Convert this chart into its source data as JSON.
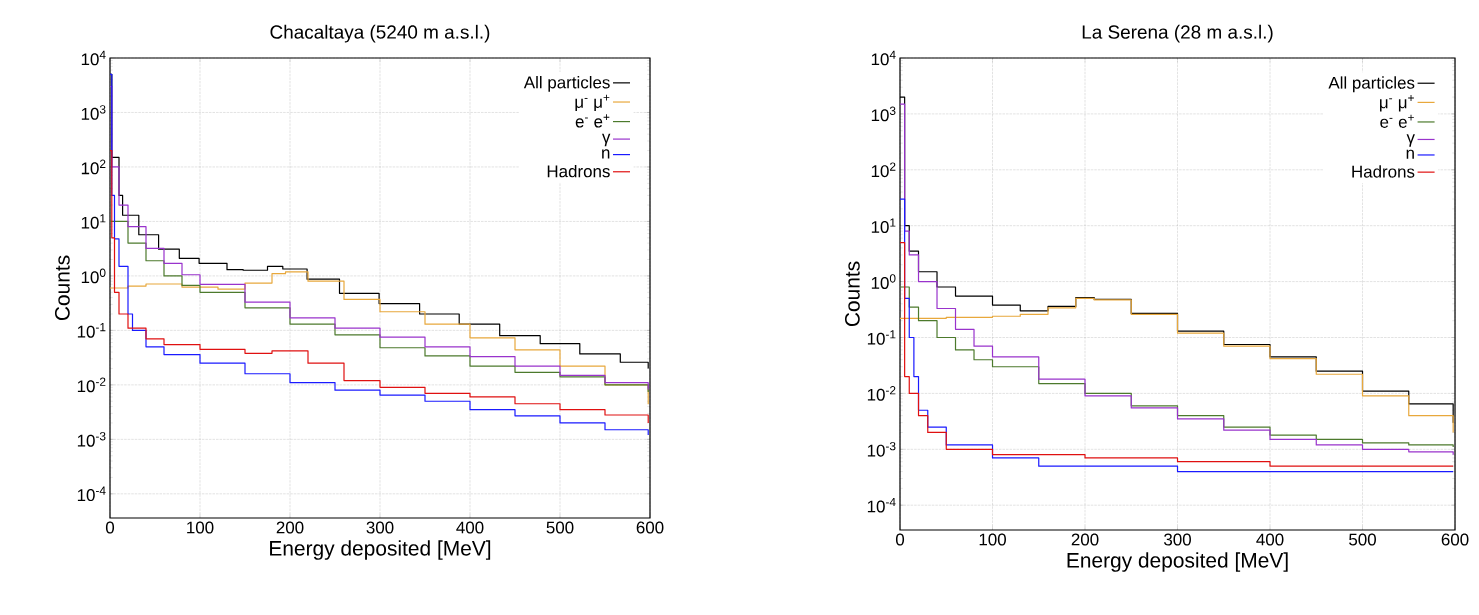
{
  "chart_data": [
    {
      "type": "step",
      "title": "Chacaltaya (5240 m a.s.l.)",
      "xlabel": "Energy deposited [MeV]",
      "ylabel": "Counts",
      "log": true,
      "grid": true,
      "legend": "top right",
      "xlim": [
        0,
        600
      ],
      "ylim": [
        3.6e-05,
        10000
      ],
      "xticks": [
        0,
        100,
        200,
        300,
        400,
        500,
        600
      ],
      "yticks": [
        {
          "value": 0.0001,
          "label": "10$^{-4}$"
        },
        {
          "value": 0.001,
          "label": "10$^{-3}$"
        },
        {
          "value": 0.01,
          "label": "10$^{-2}$"
        },
        {
          "value": 0.1,
          "label": "10$^{-1}$"
        },
        {
          "value": 1,
          "label": "10$^{0}$"
        },
        {
          "value": 10,
          "label": "10$^{1}$"
        },
        {
          "value": 100,
          "label": "10$^{2}$"
        },
        {
          "value": 1000,
          "label": "10$^{3}$"
        },
        {
          "value": 10000,
          "label": "10$^{4}$"
        }
      ],
      "series": [
        {
          "name": "All particles",
          "color": "#000000",
          "x": [
            0,
            2,
            10,
            14,
            32,
            54,
            77,
            99,
            130,
            148,
            175,
            192,
            219,
            255,
            299,
            344,
            388,
            433,
            478,
            522,
            567,
            598
          ],
          "values": [
            5000,
            150,
            30,
            13,
            5.7,
            3.1,
            2.1,
            1.7,
            1.3,
            1.27,
            1.5,
            1.34,
            0.87,
            0.48,
            0.31,
            0.2,
            0.13,
            0.08,
            0.057,
            0.037,
            0.026,
            0.02
          ]
        },
        {
          "name": "μ$^{-}$ μ$^{+}$",
          "color": "#e8a83c",
          "x": [
            0,
            20,
            40,
            80,
            120,
            150,
            180,
            195,
            220,
            260,
            300,
            350,
            400,
            450,
            500,
            550,
            598
          ],
          "values": [
            0.6,
            0.65,
            0.71,
            0.62,
            0.57,
            0.74,
            1.1,
            1.19,
            0.8,
            0.37,
            0.22,
            0.13,
            0.073,
            0.044,
            0.022,
            0.01,
            0.0044
          ]
        },
        {
          "name": "e$^{-}$ e$^{+}$",
          "color": "#4c7a2c",
          "x": [
            0,
            20,
            40,
            60,
            80,
            100,
            150,
            200,
            250,
            300,
            350,
            400,
            450,
            500,
            550,
            598
          ],
          "values": [
            10,
            4,
            1.9,
            1.0,
            0.67,
            0.5,
            0.26,
            0.13,
            0.083,
            0.048,
            0.034,
            0.022,
            0.017,
            0.014,
            0.01,
            0.0074
          ]
        },
        {
          "name": "γ",
          "color": "#9933cc",
          "x": [
            0,
            2,
            10,
            20,
            40,
            60,
            80,
            100,
            150,
            200,
            250,
            300,
            350,
            400,
            450,
            500,
            550,
            598
          ],
          "values": [
            3000,
            100,
            20,
            8,
            3.2,
            1.7,
            1.05,
            0.7,
            0.33,
            0.17,
            0.11,
            0.075,
            0.05,
            0.033,
            0.022,
            0.015,
            0.011,
            0.0082
          ]
        },
        {
          "name": "n",
          "color": "#1a1aff",
          "x": [
            0,
            2,
            5,
            10,
            20,
            25,
            40,
            60,
            100,
            150,
            200,
            250,
            300,
            350,
            400,
            450,
            500,
            550,
            598
          ],
          "values": [
            5000,
            30,
            4.8,
            1.5,
            0.2,
            0.1,
            0.05,
            0.036,
            0.025,
            0.016,
            0.011,
            0.008,
            0.0065,
            0.005,
            0.0035,
            0.0027,
            0.002,
            0.0015,
            0.0012
          ]
        },
        {
          "name": "Hadrons",
          "color": "#e01010",
          "x": [
            0,
            2,
            5,
            10,
            20,
            40,
            60,
            100,
            150,
            180,
            220,
            260,
            300,
            350,
            400,
            450,
            500,
            550,
            598
          ],
          "values": [
            200,
            5,
            0.5,
            0.2,
            0.11,
            0.07,
            0.055,
            0.045,
            0.038,
            0.042,
            0.025,
            0.012,
            0.009,
            0.007,
            0.006,
            0.0045,
            0.0035,
            0.0028,
            0.002
          ]
        }
      ]
    },
    {
      "type": "step",
      "title": "La Serena (28 m a.s.l.)",
      "xlabel": "Energy deposited [MeV]",
      "ylabel": "Counts",
      "log": true,
      "grid": true,
      "legend": "top right",
      "xlim": [
        0,
        600
      ],
      "ylim": [
        3.6e-05,
        10000
      ],
      "xticks": [
        0,
        100,
        200,
        300,
        400,
        500,
        600
      ],
      "yticks": [
        {
          "value": 0.0001,
          "label": "10$^{-4}$"
        },
        {
          "value": 0.001,
          "label": "10$^{-3}$"
        },
        {
          "value": 0.01,
          "label": "10$^{-2}$"
        },
        {
          "value": 0.1,
          "label": "10$^{-1}$"
        },
        {
          "value": 1,
          "label": "10$^{0}$"
        },
        {
          "value": 10,
          "label": "10$^{1}$"
        },
        {
          "value": 100,
          "label": "10$^{2}$"
        },
        {
          "value": 1000,
          "label": "10$^{3}$"
        },
        {
          "value": 10000,
          "label": "10$^{4}$"
        }
      ],
      "series": [
        {
          "name": "All particles",
          "color": "#000000",
          "x": [
            0,
            5,
            10,
            20,
            40,
            60,
            100,
            130,
            160,
            190,
            210,
            250,
            300,
            350,
            400,
            450,
            500,
            550,
            598
          ],
          "values": [
            2000,
            10,
            3.5,
            1.5,
            0.8,
            0.55,
            0.38,
            0.3,
            0.36,
            0.52,
            0.48,
            0.27,
            0.13,
            0.075,
            0.045,
            0.025,
            0.011,
            0.0065,
            0.003
          ]
        },
        {
          "name": "μ$^{-}$ μ$^{+}$",
          "color": "#e8a83c",
          "x": [
            0,
            50,
            100,
            130,
            160,
            190,
            210,
            250,
            300,
            350,
            400,
            450,
            500,
            550,
            598
          ],
          "values": [
            0.22,
            0.23,
            0.24,
            0.26,
            0.34,
            0.5,
            0.47,
            0.26,
            0.12,
            0.07,
            0.042,
            0.022,
            0.009,
            0.004,
            0.002
          ]
        },
        {
          "name": "e$^{-}$ e$^{+}$",
          "color": "#4c7a2c",
          "x": [
            0,
            10,
            20,
            40,
            60,
            80,
            100,
            150,
            200,
            250,
            300,
            350,
            400,
            450,
            500,
            550,
            598
          ],
          "values": [
            0.8,
            0.35,
            0.2,
            0.1,
            0.06,
            0.04,
            0.03,
            0.015,
            0.01,
            0.006,
            0.004,
            0.0025,
            0.0018,
            0.0015,
            0.0013,
            0.0012,
            0.0011
          ]
        },
        {
          "name": "γ",
          "color": "#9933cc",
          "x": [
            0,
            5,
            10,
            20,
            40,
            60,
            80,
            100,
            150,
            200,
            250,
            300,
            350,
            400,
            450,
            500,
            550,
            598
          ],
          "values": [
            1500,
            8,
            3,
            1.0,
            0.33,
            0.14,
            0.07,
            0.045,
            0.018,
            0.009,
            0.0055,
            0.0035,
            0.0022,
            0.0015,
            0.0012,
            0.001,
            0.0009,
            0.0008
          ]
        },
        {
          "name": "n",
          "color": "#1a1aff",
          "x": [
            0,
            5,
            10,
            15,
            20,
            30,
            50,
            100,
            150,
            200,
            300,
            400,
            500,
            598
          ],
          "values": [
            30,
            0.5,
            0.1,
            0.02,
            0.005,
            0.0025,
            0.0012,
            0.0007,
            0.0005,
            0.0005,
            0.0004,
            0.0004,
            0.0004,
            0.0004
          ]
        },
        {
          "name": "Hadrons",
          "color": "#e01010",
          "x": [
            0,
            5,
            10,
            20,
            30,
            50,
            100,
            200,
            300,
            400,
            500,
            598
          ],
          "values": [
            5,
            0.02,
            0.01,
            0.004,
            0.002,
            0.001,
            0.0008,
            0.0007,
            0.0006,
            0.0005,
            0.0005,
            0.0005
          ]
        }
      ]
    }
  ]
}
